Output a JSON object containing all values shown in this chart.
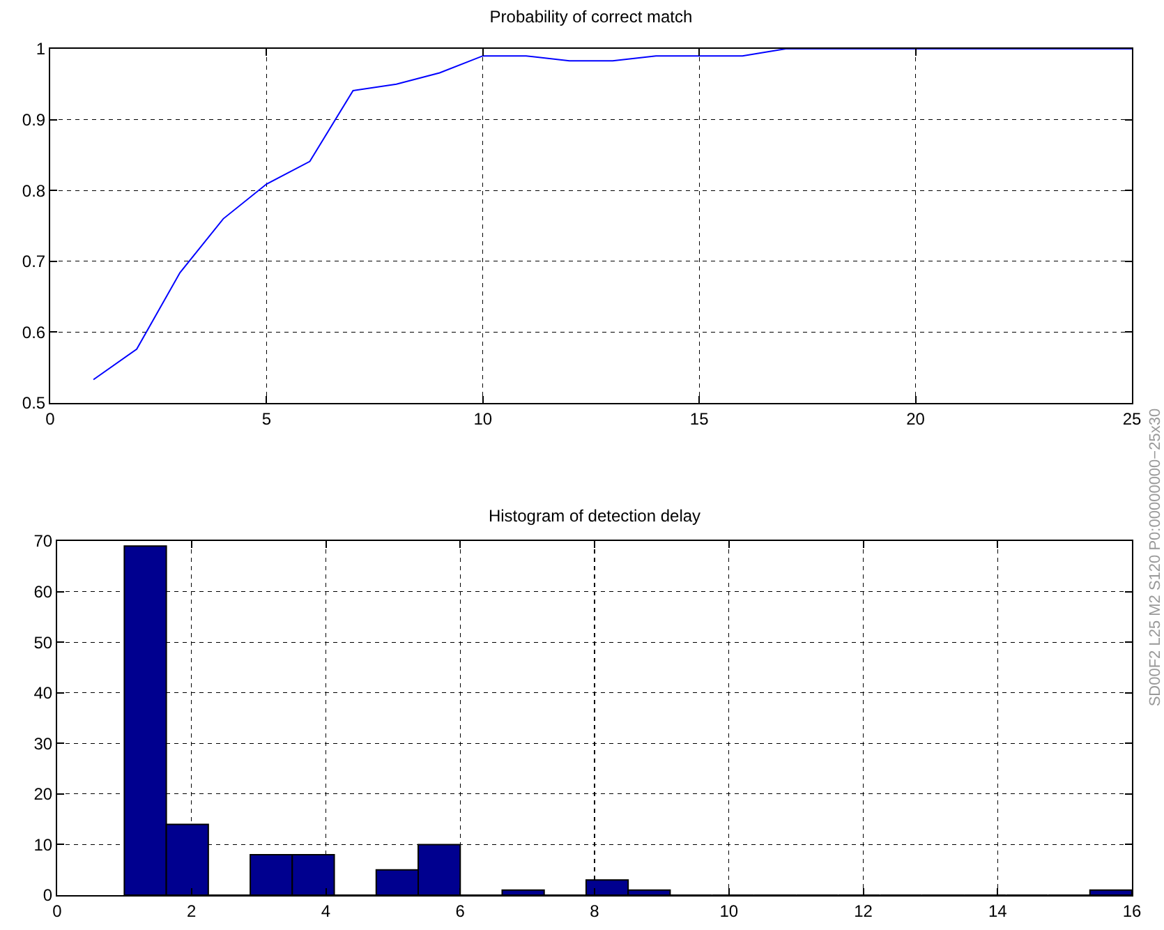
{
  "chart_data": [
    {
      "type": "line",
      "title": "Probability of correct match",
      "x": [
        1,
        2,
        3,
        4,
        5,
        6,
        7,
        8,
        9,
        10,
        11,
        12,
        13,
        14,
        15,
        16,
        17,
        18,
        19,
        20,
        21,
        22,
        23,
        24,
        25
      ],
      "series": [
        {
          "color": "#0000ff",
          "values": [
            0.533,
            0.576,
            0.684,
            0.76,
            0.809,
            0.841,
            0.941,
            0.95,
            0.966,
            0.99,
            0.99,
            0.983,
            0.983,
            0.99,
            0.99,
            0.99,
            1,
            1,
            1,
            1,
            1,
            1,
            1,
            1,
            1
          ]
        }
      ],
      "xlim": [
        0,
        25
      ],
      "xticks": [
        0,
        5,
        10,
        15,
        20,
        25
      ],
      "ylim": [
        0.5,
        1
      ],
      "yticks": [
        0.5,
        0.6,
        0.7,
        0.8,
        0.9,
        1
      ],
      "grid": true,
      "line_style": "solid",
      "marker": "none"
    },
    {
      "type": "histogram",
      "title": "Histogram of detection delay",
      "bins": [
        1,
        1.625,
        2.25,
        2.875,
        3.5,
        4.125,
        4.75,
        5.375,
        6,
        6.625,
        7.25,
        7.875,
        8.5,
        9.125,
        9.75,
        10.375,
        11,
        11.625,
        12.25,
        12.875,
        13.5,
        14.125,
        14.75,
        15.375,
        16
      ],
      "values": [
        69,
        14,
        0,
        8,
        8,
        0,
        5,
        10,
        0,
        1,
        0,
        3,
        1,
        0,
        0,
        0,
        0,
        0,
        0,
        0,
        0,
        0,
        0,
        1
      ],
      "color": "#00008f",
      "xlim": [
        0,
        16
      ],
      "xticks": [
        0,
        2,
        4,
        6,
        8,
        10,
        12,
        14,
        16
      ],
      "ylim": [
        0,
        70
      ],
      "yticks": [
        0,
        10,
        20,
        30,
        40,
        50,
        60,
        70
      ],
      "grid": true,
      "annotations": [
        "SD00F2 L25 M2 S120 P0:00000000−25x30"
      ]
    }
  ]
}
